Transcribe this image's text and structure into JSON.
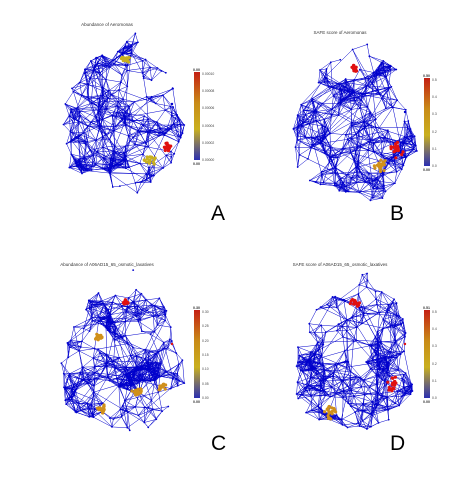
{
  "panels": [
    {
      "id": "A",
      "title": "Abundance of Aeromonas",
      "letter": "A",
      "colorbar": {
        "top": "0.00",
        "bottom": "0.00",
        "ticks": [
          "0.00010",
          "0.00008",
          "0.00006",
          "0.00004",
          "0.00002",
          "0.00000"
        ]
      }
    },
    {
      "id": "B",
      "title": "SAFE score of Aeromonas",
      "letter": "B",
      "colorbar": {
        "top": "0.50",
        "bottom": "0.00",
        "ticks": [
          "0.5",
          "0.4",
          "0.3",
          "0.2",
          "0.1",
          "0.0"
        ]
      }
    },
    {
      "id": "C",
      "title": "Abundance of A06AD15_65_osmotic_laxatives",
      "letter": "C",
      "colorbar": {
        "top": "0.30",
        "bottom": "0.00",
        "ticks": [
          "0.30",
          "0.25",
          "0.20",
          "0.15",
          "0.10",
          "0.05",
          "0.00"
        ]
      }
    },
    {
      "id": "D",
      "title": "SAFE score of A06AD15_65_osmotic_laxatives",
      "letter": "D",
      "colorbar": {
        "top": "0.51",
        "bottom": "0.00",
        "ticks": [
          "0.5",
          "0.4",
          "0.3",
          "0.2",
          "0.1",
          "0.0"
        ]
      }
    }
  ],
  "colors": {
    "network": "#0000cc",
    "high": "#e01010",
    "mid": "#d0901a",
    "low": "#c8b020"
  }
}
